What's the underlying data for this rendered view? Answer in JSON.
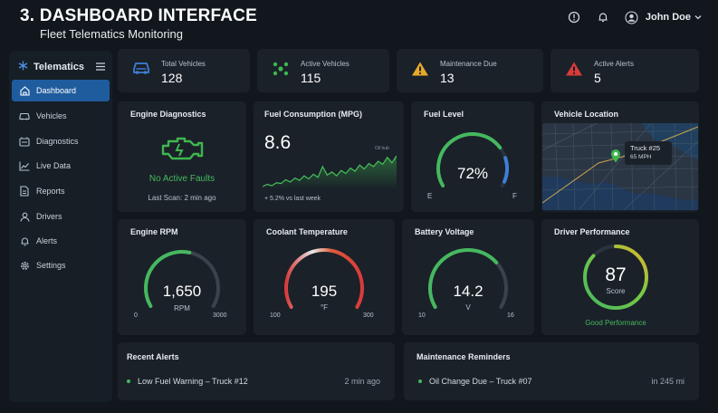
{
  "header": {
    "title": "3. DASHBOARD INTERFACE",
    "subtitle": "Fleet Telematics Monitoring",
    "user_name": "John Doe"
  },
  "sidebar": {
    "brand": "Telematics",
    "items": [
      {
        "label": "Dashboard",
        "icon": "home-icon",
        "active": true
      },
      {
        "label": "Vehicles",
        "icon": "car-icon",
        "active": false
      },
      {
        "label": "Diagnostics",
        "icon": "diagnostics-icon",
        "active": false
      },
      {
        "label": "Live Data",
        "icon": "chart-icon",
        "active": false
      },
      {
        "label": "Reports",
        "icon": "report-icon",
        "active": false
      },
      {
        "label": "Drivers",
        "icon": "user-icon",
        "active": false
      },
      {
        "label": "Alerts",
        "icon": "bell-icon",
        "active": false
      },
      {
        "label": "Settings",
        "icon": "gear-icon",
        "active": false
      }
    ]
  },
  "stats": [
    {
      "label": "Total Vehicles",
      "value": "128",
      "icon": "truck-icon",
      "color": "#3d7fd6"
    },
    {
      "label": "Active Vehicles",
      "value": "115",
      "icon": "network-icon",
      "color": "#3fb64f"
    },
    {
      "label": "Maintenance Due",
      "value": "13",
      "icon": "warning-icon",
      "color": "#e8a92a"
    },
    {
      "label": "Active Alerts",
      "value": "5",
      "icon": "alert-icon",
      "color": "#d93a3a"
    }
  ],
  "engine": {
    "title": "Engine Diagnostics",
    "status": "No Active Faults",
    "last_scan": "Last Scan: 2 min ago",
    "status_color": "#46b85f"
  },
  "fuel_consumption": {
    "title": "Fuel Consumption (MPG)",
    "value": "8.6",
    "marker": "Oil hub",
    "trend": "+ 5.2% vs last week",
    "series": [
      2.0,
      2.3,
      2.1,
      2.5,
      2.4,
      2.9,
      2.6,
      3.1,
      2.8,
      3.4,
      3.0,
      3.6,
      3.2,
      4.6,
      3.5,
      3.9,
      3.4,
      4.1,
      3.7,
      4.4,
      4.0,
      4.8,
      4.3,
      5.0,
      4.6,
      5.3,
      4.9,
      5.8,
      5.1,
      6.0
    ]
  },
  "fuel_level": {
    "title": "Fuel Level",
    "value": "72%",
    "fraction": 0.72,
    "empty_label": "E",
    "full_label": "F"
  },
  "vehicle_location": {
    "title": "Vehicle Location",
    "truck": "Truck #25",
    "speed": "65 MPH"
  },
  "rpm": {
    "title": "Engine RPM",
    "value": "1,650",
    "unit": "RPM",
    "min": "0",
    "max": "3000",
    "fraction": 0.55
  },
  "coolant": {
    "title": "Coolant Temperature",
    "value": "195",
    "unit": "°F",
    "min": "100",
    "max": "300",
    "fraction": 0.475
  },
  "battery": {
    "title": "Battery Voltage",
    "value": "14.2",
    "unit": "V",
    "min": "10",
    "max": "16",
    "fraction": 0.7
  },
  "driver": {
    "title": "Driver Performance",
    "score": "87",
    "score_label": "Score",
    "rating": "Good Performance",
    "fraction": 0.87
  },
  "alerts": {
    "title": "Recent Alerts",
    "items": [
      {
        "text": "Low Fuel Warning – Truck #12",
        "time": "2 min ago"
      }
    ]
  },
  "maintenance": {
    "title": "Maintenance Reminders",
    "items": [
      {
        "text": "Oil Change Due – Truck #07",
        "distance": "in 245 mi"
      }
    ]
  }
}
